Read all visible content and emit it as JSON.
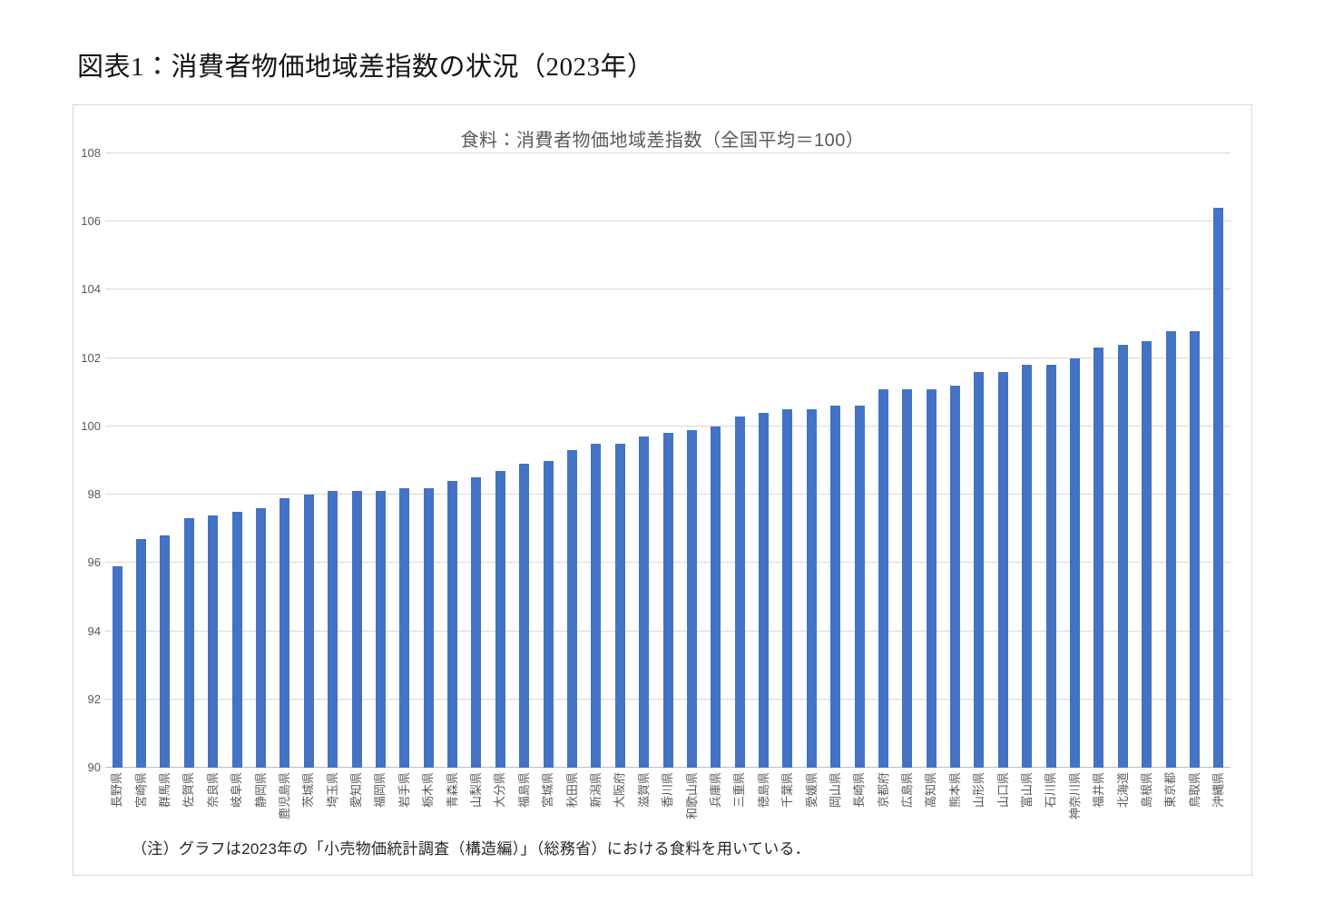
{
  "page": {
    "title": "図表1：消費者物価地域差指数の状況（2023年）"
  },
  "chart": {
    "title": "食料：消費者物価地域差指数（全国平均＝100）",
    "note": "（注）グラフは2023年の「小売物価統計調査（構造編）」（総務省）における食料を用いている．"
  },
  "chart_data": {
    "type": "bar",
    "title": "食料：消費者物価地域差指数（全国平均＝100）",
    "categories": [
      "長野県",
      "宮崎県",
      "群馬県",
      "佐賀県",
      "奈良県",
      "岐阜県",
      "静岡県",
      "鹿児島県",
      "茨城県",
      "埼玉県",
      "愛知県",
      "福岡県",
      "岩手県",
      "栃木県",
      "青森県",
      "山梨県",
      "大分県",
      "福島県",
      "宮城県",
      "秋田県",
      "新潟県",
      "大阪府",
      "滋賀県",
      "香川県",
      "和歌山県",
      "兵庫県",
      "三重県",
      "徳島県",
      "千葉県",
      "愛媛県",
      "岡山県",
      "長崎県",
      "京都府",
      "広島県",
      "高知県",
      "熊本県",
      "山形県",
      "山口県",
      "富山県",
      "石川県",
      "神奈川県",
      "福井県",
      "北海道",
      "島根県",
      "東京都",
      "鳥取県",
      "沖縄県"
    ],
    "values": [
      95.9,
      96.7,
      96.8,
      97.3,
      97.4,
      97.5,
      97.6,
      97.9,
      98.0,
      98.1,
      98.1,
      98.1,
      98.2,
      98.2,
      98.4,
      98.5,
      98.7,
      98.9,
      99.0,
      99.3,
      99.5,
      99.5,
      99.7,
      99.8,
      99.9,
      100.0,
      100.3,
      100.4,
      100.5,
      100.5,
      100.6,
      100.6,
      101.1,
      101.1,
      101.1,
      101.2,
      101.6,
      101.6,
      101.8,
      101.8,
      102.0,
      102.3,
      102.4,
      102.5,
      102.8,
      102.8,
      106.4
    ],
    "xlabel": "",
    "ylabel": "",
    "ylim": [
      90,
      108
    ],
    "yticks": [
      90,
      92,
      94,
      96,
      98,
      100,
      102,
      104,
      106,
      108
    ],
    "grid": true,
    "legend_position": "none",
    "bar_color": "#4472C4",
    "gridline_color": "#D9D9D9",
    "baseline_color": "#BFBFBF",
    "axis_text_color": "#595959",
    "note": "（注）グラフは2023年の「小売物価統計調査（構造編）」（総務省）における食料を用いている．"
  }
}
